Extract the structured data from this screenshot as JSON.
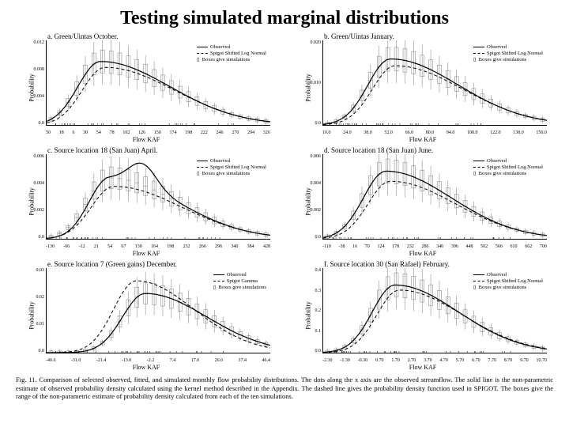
{
  "title": "Testing simulated marginal distributions",
  "legend": {
    "observed": "Observed",
    "spigot": "Spigot Shifted Log Normal",
    "spigot_gamma": "Spigot Gamma",
    "boxes": "Boxes give simulations"
  },
  "axis": {
    "ylab": "Probability",
    "xlab": "Flow KAF"
  },
  "style": {
    "line_color": "#000000",
    "box_color": "#7a7a7a",
    "background": "#ffffff",
    "line_width_solid": 1.2,
    "line_width_dash": 1.0,
    "dash_pattern": "4,3",
    "box_stroke_width": 0.5,
    "rug_height": 2,
    "font_title": 24,
    "font_panel_title": 9,
    "font_axis_label": 8,
    "font_tick": 6,
    "font_legend": 6.5,
    "font_caption": 8.5
  },
  "panels": [
    {
      "id": "a",
      "title": "a. Green/Uintas October.",
      "yticks": [
        "0.012",
        "0.008",
        "0.004",
        "0.0"
      ],
      "xticks": [
        "50",
        "18",
        "6",
        "30",
        "54",
        "78",
        "102",
        "126",
        "150",
        "174",
        "198",
        "222",
        "246",
        "270",
        "294",
        "326"
      ],
      "curve_peak_x": 0.24,
      "curve_peak_y": 0.75,
      "curve_skew": 0.6,
      "dash_peak_x": 0.26,
      "dash_peak_y": 0.68,
      "dash_skew": 0.6,
      "legend_spigot": "spigot"
    },
    {
      "id": "b",
      "title": "b. Green/Uintas January.",
      "yticks": [
        "0.020",
        "0.010",
        "0.0"
      ],
      "xticks": [
        "10.0",
        "24.0",
        "38.0",
        "52.0",
        "66.0",
        "80.0",
        "94.0",
        "108.0",
        "122.0",
        "138.0",
        "150.0"
      ],
      "curve_peak_x": 0.3,
      "curve_peak_y": 0.78,
      "curve_skew": 0.58,
      "dash_peak_x": 0.32,
      "dash_peak_y": 0.7,
      "dash_skew": 0.58,
      "legend_spigot": "spigot"
    },
    {
      "id": "c",
      "title": "c. Source location 18 (San Juan) April.",
      "yticks": [
        "0.006",
        "0.004",
        "0.002",
        "0.0"
      ],
      "xticks": [
        "-130",
        "-66",
        "-12",
        "21",
        "54",
        "67",
        "130",
        "164",
        "198",
        "232",
        "266",
        "296",
        "340",
        "384",
        "428"
      ],
      "curve_peak_x": 0.28,
      "curve_peak_y": 0.72,
      "curve_skew": 0.58,
      "dash_peak_x": 0.3,
      "dash_peak_y": 0.62,
      "dash_skew": 0.58,
      "bimodal": true,
      "legend_spigot": "spigot"
    },
    {
      "id": "d",
      "title": "d. Source location 18 (San Juan) June.",
      "yticks": [
        "0.006",
        "0.004",
        "0.002",
        "0.0"
      ],
      "xticks": [
        "-110",
        "-38",
        "16",
        "70",
        "124",
        "178",
        "232",
        "286",
        "340",
        "396",
        "448",
        "502",
        "566",
        "610",
        "662",
        "700"
      ],
      "curve_peak_x": 0.28,
      "curve_peak_y": 0.8,
      "curve_skew": 0.55,
      "dash_peak_x": 0.3,
      "dash_peak_y": 0.68,
      "dash_skew": 0.55,
      "legend_spigot": "spigot"
    },
    {
      "id": "e",
      "title": "e. Source location 7 (Green gains) December.",
      "yticks": [
        "0.03",
        "0.02",
        "0.01",
        "0.0"
      ],
      "xticks": [
        "-40.6",
        "-31.0",
        "-21.4",
        "-13.0",
        "-2.2",
        "7.4",
        "17.0",
        "26.6",
        "37.4",
        "46.4"
      ],
      "curve_peak_x": 0.44,
      "curve_peak_y": 0.7,
      "curve_skew": 0.5,
      "dash_peak_x": 0.4,
      "dash_peak_y": 0.85,
      "dash_skew": 0.45,
      "legend_spigot": "spigot_gamma"
    },
    {
      "id": "f",
      "title": "f. Source location 30 (San Rafael) February.",
      "yticks": [
        "0.4",
        "0.3",
        "0.2",
        "0.1",
        "0.0"
      ],
      "xticks": [
        "-2.30",
        "-1.30",
        "-0.30",
        "0.70",
        "1.70",
        "2.70",
        "3.70",
        "4.70",
        "5.70",
        "6.70",
        "7.70",
        "8.70",
        "9.70",
        "10.70"
      ],
      "curve_peak_x": 0.32,
      "curve_peak_y": 0.8,
      "curve_skew": 0.52,
      "dash_peak_x": 0.34,
      "dash_peak_y": 0.74,
      "dash_skew": 0.52,
      "legend_spigot": "spigot"
    }
  ],
  "caption": "Fig. 11. Comparison of selected observed, fitted, and simulated monthly flow probability distributions. The dots along the x axis are the observed streamflow. The solid line is the non-parametric estimate of observed probability density calculated using the kernel method described in the Appendix. The dashed line gives the probability density function used in SPIGOT. The boxes give the range of the non-parametric estimate of probability density calculated from each of the ten simulations."
}
